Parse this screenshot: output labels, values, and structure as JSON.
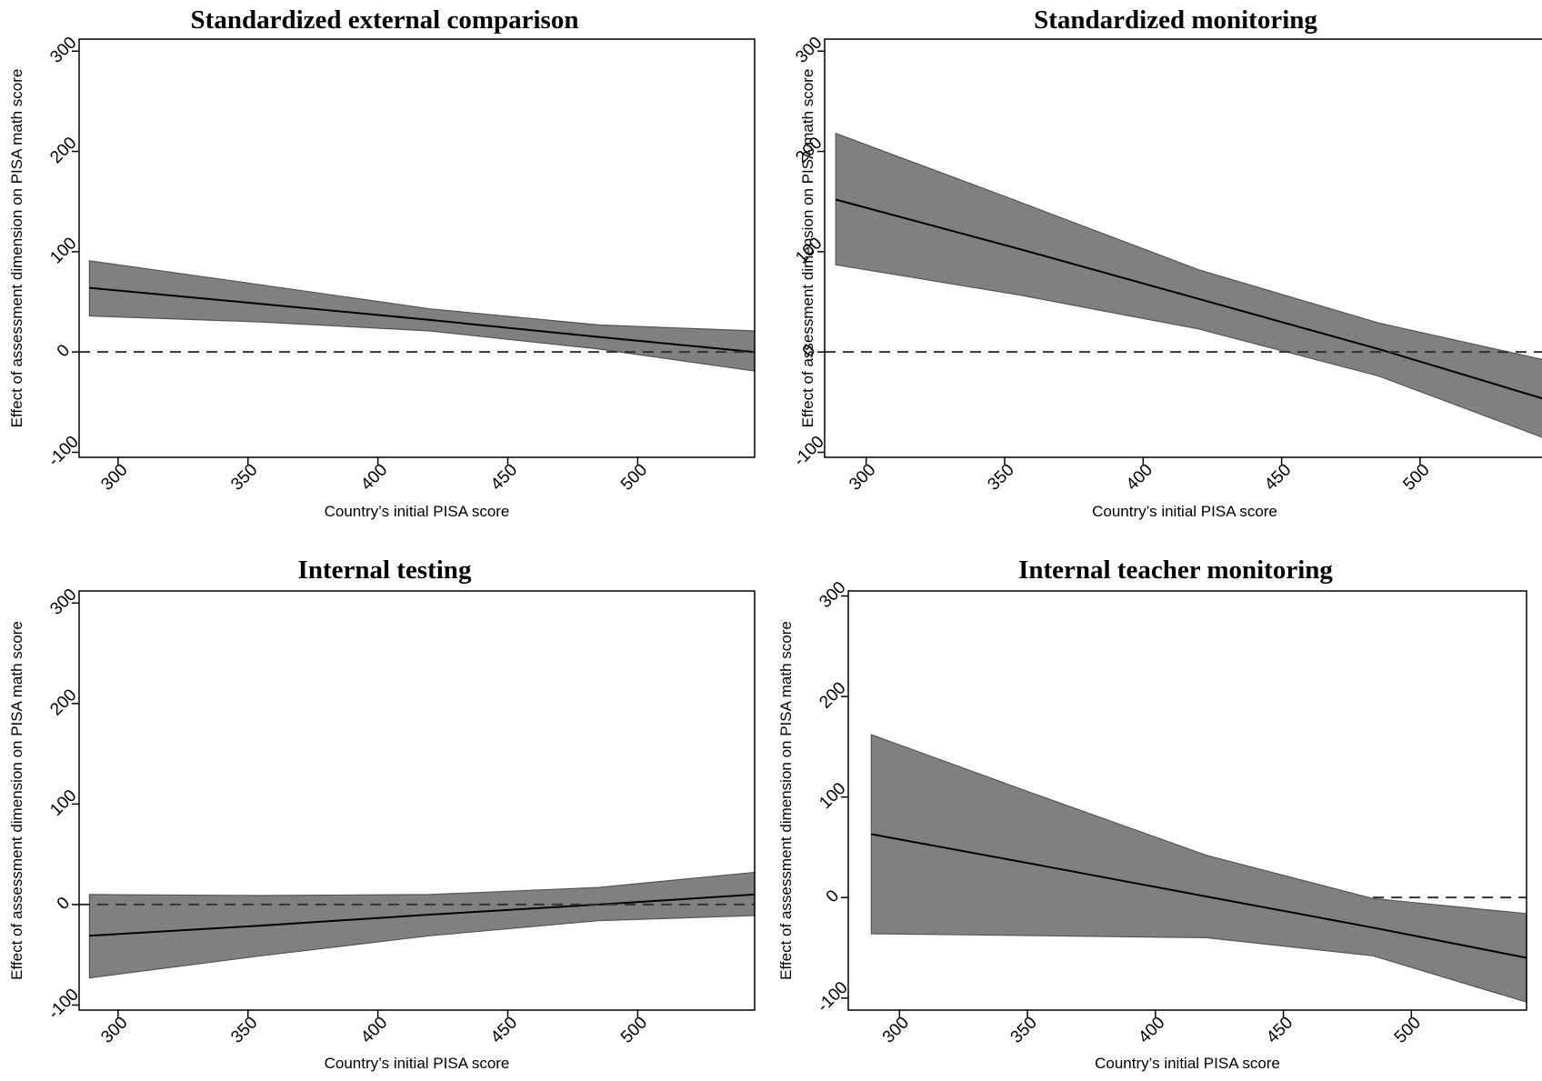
{
  "chart_data": [
    {
      "type": "area",
      "title": "Standardized external comparison",
      "xlabel": "Country’s initial PISA score",
      "ylabel": "Effect of assessment dimension on PISA math score",
      "xlim": [
        285,
        545
      ],
      "ylim": [
        -105,
        312
      ],
      "xticks": [
        300,
        350,
        400,
        450,
        500
      ],
      "yticks": [
        -100,
        0,
        100,
        200,
        300
      ],
      "reference_line": {
        "y": 0,
        "style": "dashed",
        "x_range": [
          285,
          545
        ]
      },
      "band_color": "#808080",
      "series": [
        {
          "x": [
            289,
            355,
            420,
            485,
            545
          ],
          "estimate": [
            64,
            48,
            32,
            15,
            0
          ],
          "lower": [
            36,
            30,
            21,
            3,
            -19
          ],
          "upper": [
            91,
            67,
            43,
            27,
            21
          ]
        }
      ]
    },
    {
      "type": "area",
      "title": "Standardized monitoring",
      "xlabel": "Country’s initial PISA score",
      "ylabel": "Effect of assessment dimension on PISA math score",
      "xlim": [
        285,
        545
      ],
      "ylim": [
        -105,
        312
      ],
      "xticks": [
        300,
        350,
        400,
        450,
        500
      ],
      "yticks": [
        -100,
        0,
        100,
        200,
        300
      ],
      "reference_line": {
        "y": 0,
        "style": "dashed",
        "x_range": [
          285,
          545
        ]
      },
      "band_color": "#808080",
      "series": [
        {
          "x": [
            289,
            355,
            420,
            485,
            545
          ],
          "estimate": [
            152,
            103,
            53,
            3,
            -47
          ],
          "lower": [
            87,
            57,
            23,
            -24,
            -86
          ],
          "upper": [
            218,
            150,
            82,
            29,
            -8
          ]
        }
      ]
    },
    {
      "type": "area",
      "title": "Internal testing",
      "xlabel": "Country’s initial PISA score",
      "ylabel": "Effect of assessment dimension on PISA math score",
      "xlim": [
        285,
        545
      ],
      "ylim": [
        -105,
        312
      ],
      "xticks": [
        300,
        350,
        400,
        450,
        500
      ],
      "yticks": [
        -100,
        0,
        100,
        200,
        300
      ],
      "reference_line": {
        "y": 0,
        "style": "dashed",
        "x_range": [
          285,
          545
        ]
      },
      "band_color": "#808080",
      "series": [
        {
          "x": [
            289,
            355,
            420,
            485,
            545
          ],
          "estimate": [
            -31,
            -21,
            -10,
            0,
            10
          ],
          "lower": [
            -73,
            -51,
            -31,
            -16,
            -11
          ],
          "upper": [
            10,
            9,
            10,
            17,
            32
          ]
        }
      ]
    },
    {
      "type": "area",
      "title": "Internal teacher monitoring",
      "xlabel": "Country’s initial PISA score",
      "ylabel": "Effect of assessment dimension on PISA math score",
      "xlim": [
        280,
        545
      ],
      "ylim": [
        -112,
        305
      ],
      "xticks": [
        300,
        350,
        400,
        450,
        500
      ],
      "yticks": [
        -100,
        0,
        100,
        200,
        300
      ],
      "reference_line": {
        "y": 0,
        "style": "dashed",
        "x_range": [
          485,
          545
        ]
      },
      "band_color": "#808080",
      "series": [
        {
          "x": [
            289,
            355,
            420,
            485,
            545
          ],
          "estimate": [
            63,
            32,
            1,
            -30,
            -60
          ],
          "lower": [
            -36,
            -38,
            -40,
            -58,
            -104
          ],
          "upper": [
            162,
            101,
            42,
            -1,
            -16
          ]
        }
      ]
    }
  ]
}
